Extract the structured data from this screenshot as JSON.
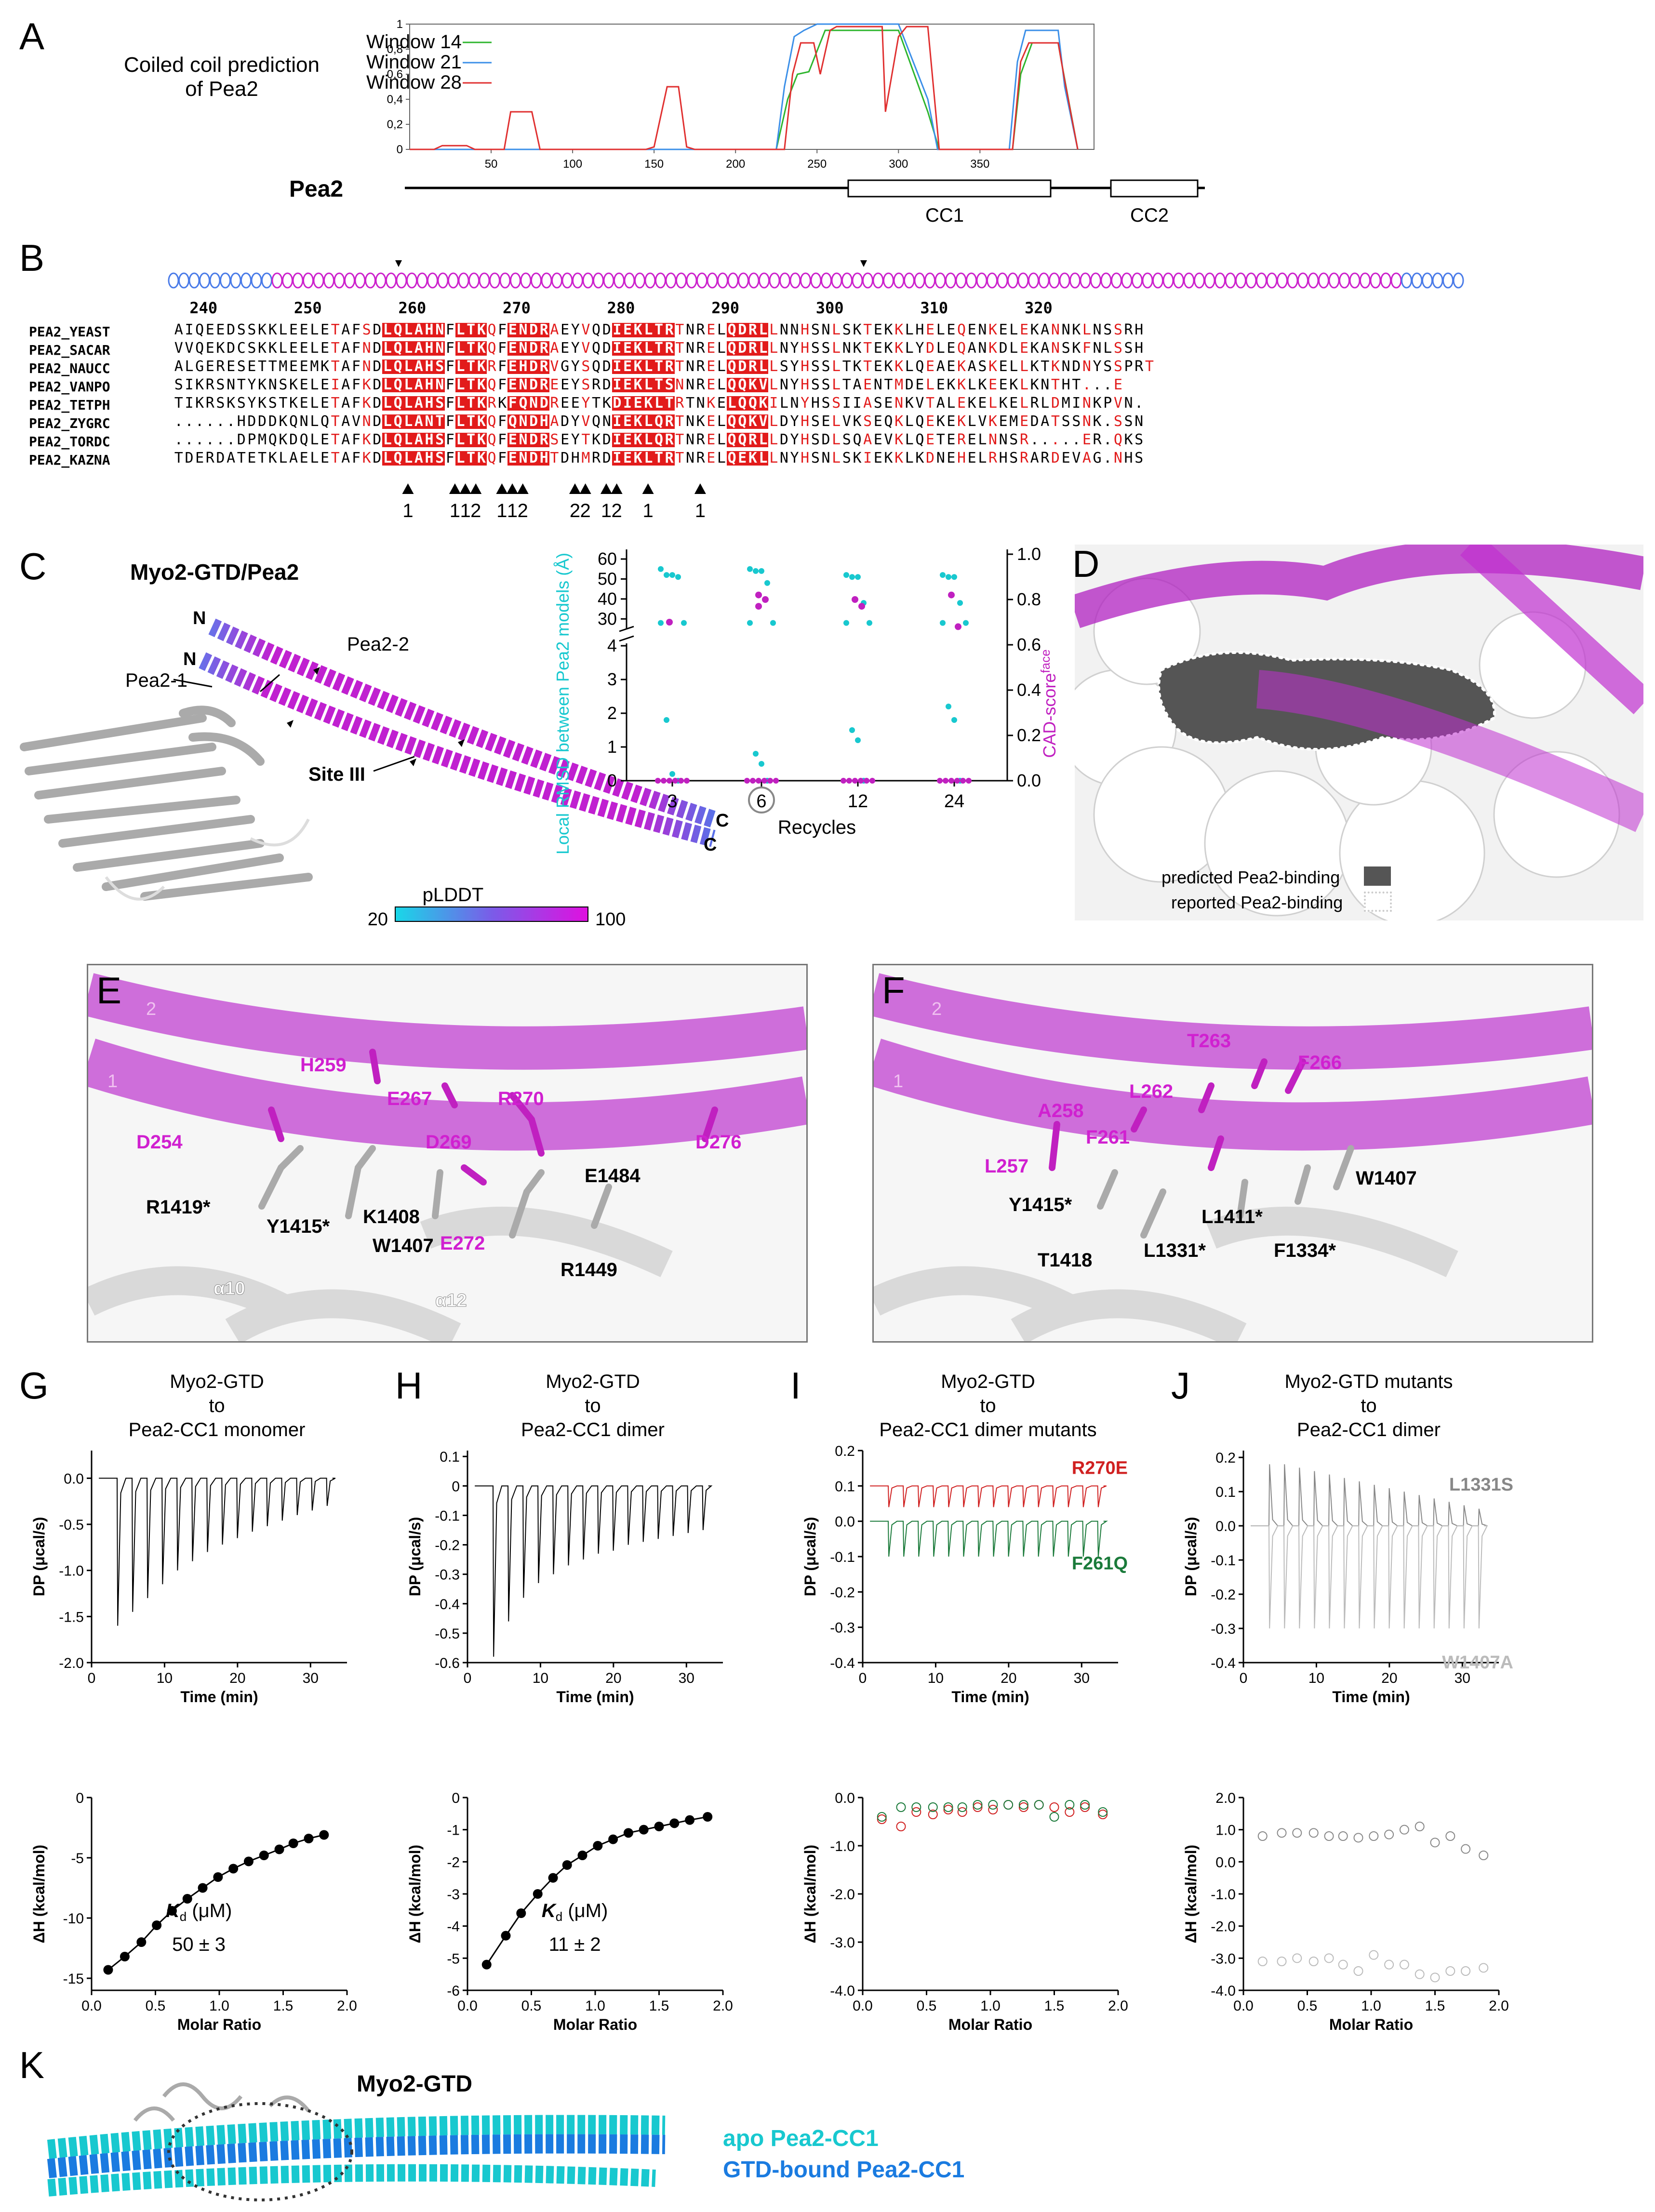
{
  "panel_letters": {
    "A": "A",
    "B": "B",
    "C": "C",
    "D": "D",
    "E": "E",
    "F": "F",
    "G": "G",
    "H": "H",
    "I": "I",
    "J": "J",
    "K": "K"
  },
  "panelA": {
    "title_line1": "Coiled coil prediction",
    "title_line2": "of Pea2",
    "legend": [
      "Window 14",
      "Window 21",
      "Window 28"
    ],
    "legend_colors": [
      "#2db52d",
      "#3b8fe8",
      "#e03030"
    ],
    "yticks": [
      "1",
      "0,8",
      "0,6",
      "0,4",
      "0,2",
      "0"
    ],
    "xticks": [
      "50",
      "100",
      "150",
      "200",
      "250",
      "300",
      "350"
    ],
    "protein": "Pea2",
    "domains": [
      "CC1",
      "CC2"
    ]
  },
  "panelB": {
    "numbers": [
      "240",
      "250",
      "260",
      "270",
      "280",
      "290",
      "300",
      "310",
      "320"
    ],
    "names": [
      "PEA2_YEAST",
      "PEA2_SACAR",
      "PEA2_NAUCC",
      "PEA2_VANPO",
      "PEA2_TETPH",
      "PEA2_ZYGRC",
      "PEA2_TORDC",
      "PEA2_KAZNA"
    ],
    "seqs": [
      "AIQEEDSSKKLEELETAFSDLQLAHNFLTKQFENDRAEYVQDIEKLTRTNRELQDRLLNNHSNLSKTEKKLHELEQENKELEKANNKLNSSRH",
      "VVQEKDCSKKLEELETAFNDLQLAHNFLTKQFENDRAEYVQDIEKLTRTNRELQDRLLNYHSSLNKTEKKLYDLEQANKDLEKANSKFNLSSH",
      "ALGERESETTMEEMKTAFNDLQLAHSFLTKRFEHDRVGYSQDIEKLTRTNRELQDRLLSYHSSLTKTEKKLQEAEKASKELLKTKNDNYSSPRT",
      "SIKRSNTYKNSKELEIAFKDLQLAHNFLTKQFENDREEYSRDIEKLTSNNRELQQKVLNYHSSLTAENTMDELEKKLKEEKLKNTHT...E",
      "TIKRSKSYKSTKELETAFKDLQLAHSFLTKRKFQNDREEYTKDIEKLTRTNKELQQKILNYHSSIIASENKVTALEKELKELRLDMINKPVN.",
      "......HDDDKQNLQTAVNDLQLANTFLTKQFQNDHADYVQNIEKLQRTNKELQQKVLDYHSELVKSEQKLQEKEKLVKEMEDATSSNK.SSN",
      "......DPMQKDQLETAFKDLQLAHSFLTKQFENDRSEYTKDIEKLQRTNRELQQRLLDYHSDLSQAEVKLQETERELNNSR.....ER.QKS",
      "TDERDATETKLAELETAFKDLQLAHSFLTKQFENDHTDHMRDIEKLTRTNRELQEKLLNYHSNLSKIEKKLKDNEHELRHSRARDEVAG.NHS"
    ],
    "marker_counts": [
      "1",
      "1",
      "1",
      "2",
      "1",
      "1",
      "2",
      "2",
      "2",
      "1",
      "2",
      "1",
      "1"
    ]
  },
  "panelC": {
    "title": "Myo2-GTD/Pea2",
    "labels": {
      "pea22": "Pea2-2",
      "pea21": "Pea2-1",
      "site": "Site III",
      "n1": "N",
      "n2": "N",
      "c1": "C",
      "c2": "C"
    },
    "plddt_label": "pLDDT",
    "plddt_min": "20",
    "plddt_max": "100",
    "ylabel_left": "Local RMSD between Pea2 models (Å)",
    "ylabel_right": "CAD-score",
    "ylabel_right_sup": "face",
    "xlabel": "Recycles",
    "yticks_left": [
      "60",
      "50",
      "40",
      "30",
      "4",
      "3",
      "2",
      "1",
      "0"
    ],
    "yticks_right": [
      "1.0",
      "0.8",
      "0.6",
      "0.4",
      "0.2",
      "0.0"
    ],
    "xticks": [
      "3",
      "6",
      "12",
      "24"
    ]
  },
  "panelD": {
    "legend1": "predicted Pea2-binding",
    "legend2": "reported Pea2-binding"
  },
  "panelE": {
    "helix1": "1",
    "helix2": "2",
    "residues_magenta": [
      "H259",
      "E267",
      "R270",
      "D254",
      "D269",
      "D276",
      "E272"
    ],
    "residues_black": [
      "E1484",
      "R1419*",
      "Y1415*",
      "K1408",
      "W1407",
      "R1449"
    ],
    "helices": [
      "α10",
      "α12"
    ]
  },
  "panelF": {
    "helix1": "1",
    "helix2": "2",
    "residues_magenta": [
      "T263",
      "F266",
      "L262",
      "A258",
      "F261",
      "L257"
    ],
    "residues_black": [
      "W1407",
      "Y1415*",
      "L1411*",
      "L1331*",
      "F1334*",
      "T1418"
    ]
  },
  "itc": [
    {
      "title1": "Myo2-GTD",
      "title2": "to",
      "title3": "Pea2-CC1 monomer",
      "dp_ticks": [
        "0.0",
        "-0.5",
        "-1.0",
        "-1.5",
        "-2.0"
      ],
      "dh_ticks": [
        "0",
        "-5",
        "-10",
        "-15"
      ],
      "kd_label": "K",
      "kd_sub": "d",
      "kd_unit": "(μM)",
      "kd_value": "50 ± 3"
    },
    {
      "title1": "Myo2-GTD",
      "title2": "to",
      "title3": "Pea2-CC1 dimer",
      "dp_ticks": [
        "0.1",
        "0",
        "-0.1",
        "-0.2",
        "-0.3",
        "-0.4",
        "-0.5",
        "-0.6"
      ],
      "dh_ticks": [
        "0",
        "-1",
        "-2",
        "-3",
        "-4",
        "-5",
        "-6"
      ],
      "kd_label": "K",
      "kd_sub": "d",
      "kd_unit": "(μM)",
      "kd_value": "11 ± 2"
    },
    {
      "title1": "Myo2-GTD",
      "title2": "to",
      "title3": "Pea2-CC1 dimer mutants",
      "dp_ticks": [
        "0.2",
        "0.1",
        "0.0",
        "-0.1",
        "-0.2",
        "-0.3",
        "-0.4"
      ],
      "dh_ticks": [
        "0.0",
        "-1.0",
        "-2.0",
        "-3.0",
        "-4.0"
      ],
      "mut1": "R270E",
      "mut2": "F261Q"
    },
    {
      "title1": "Myo2-GTD mutants",
      "title2": "to",
      "title3": "Pea2-CC1 dimer",
      "dp_ticks": [
        "0.2",
        "0.1",
        "0.0",
        "-0.1",
        "-0.2",
        "-0.3",
        "-0.4"
      ],
      "dh_ticks": [
        "2.0",
        "1.0",
        "0.0",
        "-1.0",
        "-2.0",
        "-3.0",
        "-4.0"
      ],
      "mut1": "L1331S",
      "mut2": "W1407A"
    }
  ],
  "itc_axes": {
    "dp_label": "DP (μcal/s)",
    "dh_label": "ΔH (kcal/mol)",
    "time_label": "Time (min)",
    "ratio_label": "Molar Ratio",
    "time_ticks": [
      "0",
      "10",
      "20",
      "30"
    ],
    "ratio_ticks": [
      "0.0",
      "0.5",
      "1.0",
      "1.5",
      "2.0"
    ]
  },
  "panelK": {
    "title": "Myo2-GTD",
    "legend1": "apo Pea2-CC1",
    "legend2": "GTD-bound Pea2-CC1",
    "color1": "#18c8cf",
    "color2": "#1a7be0"
  },
  "chart_data": [
    {
      "type": "line",
      "title": "Coiled coil prediction of Pea2",
      "xlabel": "",
      "ylabel": "",
      "xlim": [
        0,
        420
      ],
      "ylim": [
        0,
        1
      ],
      "series": [
        {
          "name": "Window 14",
          "x": [
            0,
            225,
            232,
            238,
            245,
            255,
            300,
            318,
            325,
            330,
            370,
            375,
            382,
            398,
            400,
            410
          ],
          "values": [
            0,
            0,
            0.4,
            0.6,
            0.62,
            0.95,
            0.95,
            0.3,
            0,
            0,
            0,
            0.6,
            0.85,
            0.85,
            0.7,
            0
          ]
        },
        {
          "name": "Window 21",
          "x": [
            0,
            225,
            230,
            236,
            242,
            250,
            300,
            318,
            324,
            330,
            368,
            373,
            378,
            398,
            402,
            410
          ],
          "values": [
            0,
            0,
            0.5,
            0.9,
            0.95,
            1,
            1,
            0.4,
            0,
            0,
            0,
            0.7,
            0.95,
            0.95,
            0.5,
            0
          ]
        },
        {
          "name": "Window 28",
          "x": [
            0,
            15,
            20,
            35,
            40,
            58,
            62,
            75,
            80,
            145,
            150,
            158,
            165,
            170,
            175,
            230,
            235,
            240,
            248,
            252,
            258,
            262,
            268,
            290,
            292,
            300,
            305,
            318,
            325,
            330,
            370,
            375,
            380,
            398,
            402,
            410
          ],
          "values": [
            0,
            0,
            0.03,
            0.03,
            0,
            0,
            0.3,
            0.3,
            0,
            0,
            0.02,
            0.5,
            0.5,
            0.02,
            0,
            0,
            0.6,
            0.85,
            0.85,
            0.6,
            0.95,
            0.98,
            0.98,
            0.98,
            0.3,
            0.9,
            0.98,
            0.98,
            0,
            0,
            0,
            0.7,
            0.85,
            0.85,
            0.55,
            0
          ]
        }
      ]
    },
    {
      "type": "scatter",
      "xlabel": "Recycles",
      "categories": [
        "3",
        "6",
        "12",
        "24"
      ],
      "series": [
        {
          "name": "Local RMSD between Pea2 models (Å)",
          "values": [
            [
              55,
              52,
              52,
              51,
              28,
              28,
              1.8,
              0.2,
              0
            ],
            [
              55,
              54,
              54,
              48,
              28,
              28,
              0.8,
              0.5,
              0
            ],
            [
              52,
              51,
              51,
              38,
              28,
              28,
              1.5,
              1.2,
              0
            ],
            [
              52,
              51,
              51,
              38,
              28,
              28,
              2.2,
              1.8,
              0
            ]
          ]
        },
        {
          "name": "CAD-score face",
          "values": [
            [
              0.7,
              0.0
            ],
            [
              0.82,
              0.8,
              0.77,
              0.0
            ],
            [
              0.8,
              0.77,
              0.0
            ],
            [
              0.82,
              0.68,
              0.0
            ]
          ]
        }
      ]
    },
    {
      "type": "line",
      "title": "Myo2-GTD to Pea2-CC1 monomer",
      "xlabel": "Molar Ratio",
      "ylabel": "ΔH (kcal/mol)",
      "xlim": [
        0,
        2
      ],
      "ylim": [
        -16,
        0
      ],
      "x": [
        0.13,
        0.26,
        0.39,
        0.51,
        0.63,
        0.75,
        0.87,
        0.99,
        1.11,
        1.23,
        1.35,
        1.47,
        1.58,
        1.7,
        1.82
      ],
      "series": [
        {
          "name": "",
          "values": [
            -14.3,
            -13.2,
            -12,
            -10.6,
            -9.4,
            -8.4,
            -7.5,
            -6.6,
            -5.9,
            -5.3,
            -4.8,
            -4.3,
            -3.8,
            -3.4,
            -3.1
          ]
        }
      ]
    },
    {
      "type": "line",
      "title": "Myo2-GTD to Pea2-CC1 dimer",
      "xlabel": "Molar Ratio",
      "ylabel": "ΔH (kcal/mol)",
      "xlim": [
        0,
        2
      ],
      "ylim": [
        -6,
        0
      ],
      "x": [
        0.15,
        0.3,
        0.42,
        0.55,
        0.67,
        0.78,
        0.9,
        1.02,
        1.14,
        1.26,
        1.38,
        1.5,
        1.62,
        1.74,
        1.88
      ],
      "series": [
        {
          "name": "",
          "values": [
            -5.2,
            -4.3,
            -3.6,
            -3.0,
            -2.5,
            -2.1,
            -1.8,
            -1.5,
            -1.3,
            -1.1,
            -1.0,
            -0.9,
            -0.8,
            -0.7,
            -0.6
          ]
        }
      ]
    },
    {
      "type": "scatter",
      "title": "Myo2-GTD to Pea2-CC1 dimer mutants",
      "xlabel": "Molar Ratio",
      "ylabel": "ΔH (kcal/mol)",
      "xlim": [
        0,
        2
      ],
      "ylim": [
        -4,
        0
      ],
      "x": [
        0.15,
        0.3,
        0.42,
        0.55,
        0.67,
        0.78,
        0.9,
        1.02,
        1.14,
        1.26,
        1.38,
        1.5,
        1.62,
        1.74,
        1.88
      ],
      "series": [
        {
          "name": "R270E",
          "values": [
            -0.45,
            -0.6,
            -0.3,
            -0.35,
            -0.25,
            -0.3,
            -0.2,
            -0.25,
            -0.15,
            -0.2,
            -0.15,
            -0.2,
            -0.3,
            -0.2,
            -0.35
          ]
        },
        {
          "name": "F261Q",
          "values": [
            -0.4,
            -0.2,
            -0.2,
            -0.2,
            -0.2,
            -0.2,
            -0.15,
            -0.15,
            -0.15,
            -0.15,
            -0.15,
            -0.4,
            -0.15,
            -0.15,
            -0.3
          ]
        }
      ]
    },
    {
      "type": "scatter",
      "title": "Myo2-GTD mutants to Pea2-CC1 dimer",
      "xlabel": "Molar Ratio",
      "ylabel": "ΔH (kcal/mol)",
      "xlim": [
        0,
        2
      ],
      "ylim": [
        -4,
        2
      ],
      "x": [
        0.15,
        0.3,
        0.42,
        0.55,
        0.67,
        0.78,
        0.9,
        1.02,
        1.14,
        1.26,
        1.38,
        1.5,
        1.62,
        1.74,
        1.88
      ],
      "series": [
        {
          "name": "L1331S",
          "values": [
            0.8,
            0.9,
            0.9,
            0.9,
            0.8,
            0.8,
            0.75,
            0.8,
            0.85,
            1.0,
            1.1,
            0.6,
            0.8,
            0.4,
            0.2
          ]
        },
        {
          "name": "W1407A",
          "values": [
            -3.1,
            -3.1,
            -3.0,
            -3.1,
            -3.0,
            -3.2,
            -3.4,
            -2.9,
            -3.2,
            -3.2,
            -3.5,
            -3.6,
            -3.4,
            -3.4,
            -3.3
          ]
        }
      ]
    }
  ]
}
